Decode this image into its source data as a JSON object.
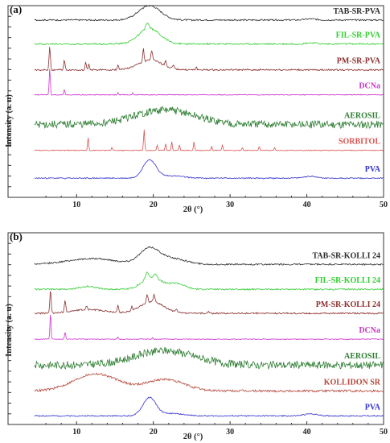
{
  "chart_data": [
    {
      "type": "line",
      "panel_label": "(a)",
      "xlabel": "2θ (°)",
      "ylabel": "Intensity (a. u)",
      "xlim": [
        4,
        50
      ],
      "xticks": [
        10,
        20,
        30,
        40,
        50
      ],
      "series": [
        {
          "name": "TAB-SR-PVA",
          "color": "#2b2b2b",
          "baseline": 0.925,
          "noise": 0.004,
          "humps": [
            [
              19.5,
              2.0,
              0.075
            ],
            [
              40.5,
              1.0,
              0.006
            ]
          ],
          "peaks": []
        },
        {
          "name": "FIL-SR-PVA",
          "color": "#33cc33",
          "baseline": 0.8,
          "noise": 0.004,
          "humps": [
            [
              19.5,
              2.0,
              0.08
            ],
            [
              40.5,
              1.0,
              0.006
            ]
          ],
          "peaks": [
            [
              19.2,
              0.3,
              0.03
            ]
          ]
        },
        {
          "name": "PM-SR-PVA",
          "color": "#8b2f2f",
          "baseline": 0.665,
          "noise": 0.004,
          "humps": [
            [
              19.6,
              2.2,
              0.05
            ]
          ],
          "peaks": [
            [
              6.5,
              0.12,
              0.12
            ],
            [
              8.4,
              0.12,
              0.05
            ],
            [
              11.2,
              0.12,
              0.04
            ],
            [
              11.6,
              0.1,
              0.03
            ],
            [
              15.4,
              0.12,
              0.025
            ],
            [
              18.7,
              0.12,
              0.07
            ],
            [
              19.8,
              0.15,
              0.05
            ],
            [
              21.6,
              0.12,
              0.03
            ],
            [
              22.6,
              0.12,
              0.02
            ],
            [
              25.6,
              0.12,
              0.015
            ]
          ]
        },
        {
          "name": "DCNa",
          "color": "#cc33cc",
          "baseline": 0.535,
          "noise": 0.002,
          "humps": [],
          "peaks": [
            [
              6.5,
              0.1,
              0.14
            ],
            [
              8.4,
              0.1,
              0.03
            ],
            [
              15.4,
              0.1,
              0.01
            ],
            [
              17.3,
              0.1,
              0.008
            ]
          ]
        },
        {
          "name": "AEROSIL",
          "color": "#2e7d32",
          "baseline": 0.38,
          "noise": 0.02,
          "humps": [
            [
              21.5,
              5.5,
              0.075
            ]
          ],
          "peaks": []
        },
        {
          "name": "SORBITOL",
          "color": "#d9534f",
          "baseline": 0.245,
          "noise": 0.002,
          "humps": [],
          "peaks": [
            [
              11.5,
              0.1,
              0.07
            ],
            [
              14.6,
              0.1,
              0.015
            ],
            [
              18.8,
              0.1,
              0.11
            ],
            [
              20.5,
              0.1,
              0.03
            ],
            [
              21.6,
              0.1,
              0.035
            ],
            [
              22.4,
              0.1,
              0.045
            ],
            [
              23.4,
              0.1,
              0.03
            ],
            [
              25.3,
              0.1,
              0.045
            ],
            [
              27.6,
              0.1,
              0.02
            ],
            [
              29.0,
              0.1,
              0.03
            ],
            [
              31.6,
              0.1,
              0.015
            ],
            [
              33.8,
              0.1,
              0.02
            ],
            [
              35.8,
              0.1,
              0.015
            ]
          ]
        },
        {
          "name": "PVA",
          "color": "#3333cc",
          "baseline": 0.1,
          "noise": 0.003,
          "humps": [
            [
              19.5,
              1.2,
              0.095
            ],
            [
              22.5,
              2.0,
              0.012
            ],
            [
              40.5,
              1.2,
              0.01
            ]
          ],
          "peaks": []
        }
      ]
    },
    {
      "type": "line",
      "panel_label": "(b)",
      "xlabel": "2θ (°)",
      "ylabel": "Intensity (a. u)",
      "xlim": [
        4,
        50
      ],
      "xticks": [
        10,
        20,
        30,
        40,
        50
      ],
      "series": [
        {
          "name": "TAB-SR-KOLLI 24",
          "color": "#2b2b2b",
          "baseline": 0.835,
          "noise": 0.004,
          "humps": [
            [
              12.0,
              4.5,
              0.03
            ],
            [
              19.5,
              1.8,
              0.08
            ],
            [
              22.5,
              2.5,
              0.03
            ]
          ],
          "peaks": []
        },
        {
          "name": "FIL-SR-KOLLI 24",
          "color": "#33cc33",
          "baseline": 0.705,
          "noise": 0.004,
          "humps": [
            [
              11.5,
              1.5,
              0.015
            ],
            [
              19.8,
              1.8,
              0.06
            ],
            [
              23.0,
              1.5,
              0.03
            ]
          ],
          "peaks": [
            [
              19.2,
              0.3,
              0.035
            ],
            [
              20.3,
              0.3,
              0.025
            ]
          ]
        },
        {
          "name": "PM-SR-KOLLI 24",
          "color": "#8b2f2f",
          "baseline": 0.58,
          "noise": 0.004,
          "humps": [
            [
              11.5,
              3.0,
              0.02
            ],
            [
              19.8,
              2.2,
              0.06
            ]
          ],
          "peaks": [
            [
              6.6,
              0.12,
              0.12
            ],
            [
              8.5,
              0.12,
              0.06
            ],
            [
              11.3,
              0.12,
              0.02
            ],
            [
              15.4,
              0.12,
              0.04
            ],
            [
              17.2,
              0.12,
              0.02
            ],
            [
              19.2,
              0.15,
              0.04
            ],
            [
              20.1,
              0.15,
              0.04
            ],
            [
              23.0,
              0.12,
              0.015
            ],
            [
              27.2,
              0.12,
              0.01
            ]
          ]
        },
        {
          "name": "DCNa",
          "color": "#cc33cc",
          "baseline": 0.445,
          "noise": 0.002,
          "humps": [],
          "peaks": [
            [
              6.6,
              0.1,
              0.14
            ],
            [
              8.5,
              0.1,
              0.04
            ],
            [
              15.4,
              0.1,
              0.01
            ],
            [
              19.9,
              0.1,
              0.008
            ]
          ]
        },
        {
          "name": "AEROSIL",
          "color": "#2e7d32",
          "baseline": 0.31,
          "noise": 0.02,
          "humps": [
            [
              21.5,
              5.5,
              0.075
            ]
          ],
          "peaks": []
        },
        {
          "name": "KOLLIDON SR",
          "color": "#b5473a",
          "baseline": 0.175,
          "noise": 0.006,
          "humps": [
            [
              12.5,
              4.0,
              0.09
            ],
            [
              21.5,
              3.5,
              0.06
            ]
          ],
          "peaks": []
        },
        {
          "name": "PVA",
          "color": "#3333cc",
          "baseline": 0.045,
          "noise": 0.003,
          "humps": [
            [
              19.5,
              1.2,
              0.095
            ],
            [
              22.5,
              2.0,
              0.012
            ],
            [
              40.5,
              1.2,
              0.01
            ]
          ],
          "peaks": []
        }
      ]
    }
  ]
}
